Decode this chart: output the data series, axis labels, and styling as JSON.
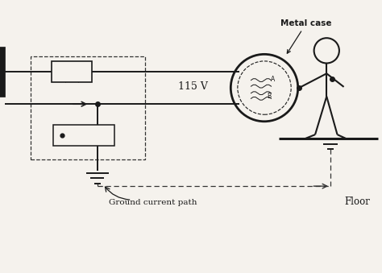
{
  "bg_color": "#f5f2ed",
  "line_color": "#1a1a1a",
  "dashed_color": "#333333",
  "fig_width": 4.74,
  "fig_height": 3.39,
  "labels": {
    "voltage": "115 V",
    "metal_case": "Metal case",
    "ground_path": "Ground current path",
    "floor": "Floor"
  }
}
